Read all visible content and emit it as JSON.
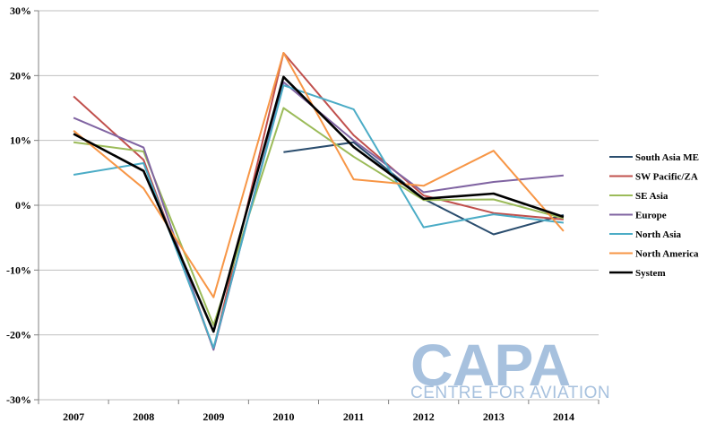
{
  "chart_data": {
    "type": "line",
    "title": "",
    "xlabel": "",
    "ylabel": "",
    "categories": [
      "2007",
      "2008",
      "2009",
      "2010",
      "2011",
      "2012",
      "2013",
      "2014"
    ],
    "ylim": [
      -30,
      30
    ],
    "y_ticks": [
      "30%",
      "20%",
      "10%",
      "0%",
      "-10%",
      "-20%",
      "-30%"
    ],
    "y_tick_values": [
      30,
      20,
      10,
      0,
      -10,
      -20,
      -30
    ],
    "grid": "horizontal",
    "legend_position": "right",
    "series": [
      {
        "name": "South Asia ME",
        "color": "#2a4d6e",
        "values": [
          null,
          null,
          null,
          8.2,
          9.7,
          1.0,
          -4.5,
          -1.5
        ]
      },
      {
        "name": "SW Pacific/ZA",
        "color": "#c0504d",
        "values": [
          16.8,
          7.0,
          -22.2,
          23.5,
          10.8,
          1.5,
          -1.2,
          -2.2
        ]
      },
      {
        "name": "SE Asia",
        "color": "#9bbb59",
        "values": [
          9.7,
          8.3,
          -18.5,
          15.0,
          7.5,
          0.8,
          0.9,
          -2.0
        ]
      },
      {
        "name": "Europe",
        "color": "#8064a2",
        "values": [
          13.5,
          8.9,
          -22.3,
          19.0,
          10.0,
          2.0,
          3.6,
          4.6
        ]
      },
      {
        "name": "North Asia",
        "color": "#4bacc6",
        "values": [
          4.7,
          6.5,
          -22.0,
          18.5,
          14.8,
          -3.4,
          -1.4,
          -2.7
        ]
      },
      {
        "name": "North America",
        "color": "#f79646",
        "values": [
          11.5,
          2.6,
          -14.2,
          23.5,
          4.0,
          3.0,
          8.4,
          -4.0
        ]
      },
      {
        "name": "System",
        "color": "#000000",
        "values": [
          11.0,
          5.3,
          -19.5,
          19.8,
          9.0,
          1.0,
          1.8,
          -1.8
        ]
      }
    ]
  },
  "watermark": {
    "logo_text": "CAPA",
    "subtitle": "CENTRE FOR AVIATION"
  }
}
